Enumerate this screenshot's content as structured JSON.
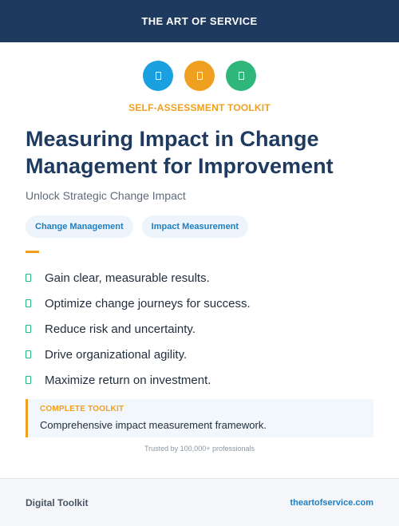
{
  "header": {
    "brand": "THE ART OF SERVICE",
    "background": "#1e3a5f"
  },
  "icons": [
    {
      "name": "document-icon",
      "color": "#1a9fe0"
    },
    {
      "name": "document-icon",
      "color": "#f0a020"
    },
    {
      "name": "document-icon",
      "color": "#2fb67a"
    }
  ],
  "hero": {
    "eyebrow": "SELF-ASSESSMENT TOOLKIT",
    "title": "Measuring Impact in Change Management for Improvement",
    "subtitle": "Unlock Strategic Change Impact"
  },
  "tags": [
    "Change Management",
    "Impact Measurement"
  ],
  "benefits": [
    "Gain clear, measurable results.",
    "Optimize change journeys for success.",
    "Reduce risk and uncertainty.",
    "Drive organizational agility.",
    "Maximize return on investment."
  ],
  "callout": {
    "label": "COMPLETE TOOLKIT",
    "text": "Comprehensive impact measurement framework."
  },
  "trusted": "Trusted by 100,000+ professionals",
  "footer": {
    "left": "Digital Toolkit",
    "right": "theartofservice.com"
  },
  "colors": {
    "accent": "#f0a020",
    "link": "#1e7fc0",
    "success": "#2fb67a"
  }
}
